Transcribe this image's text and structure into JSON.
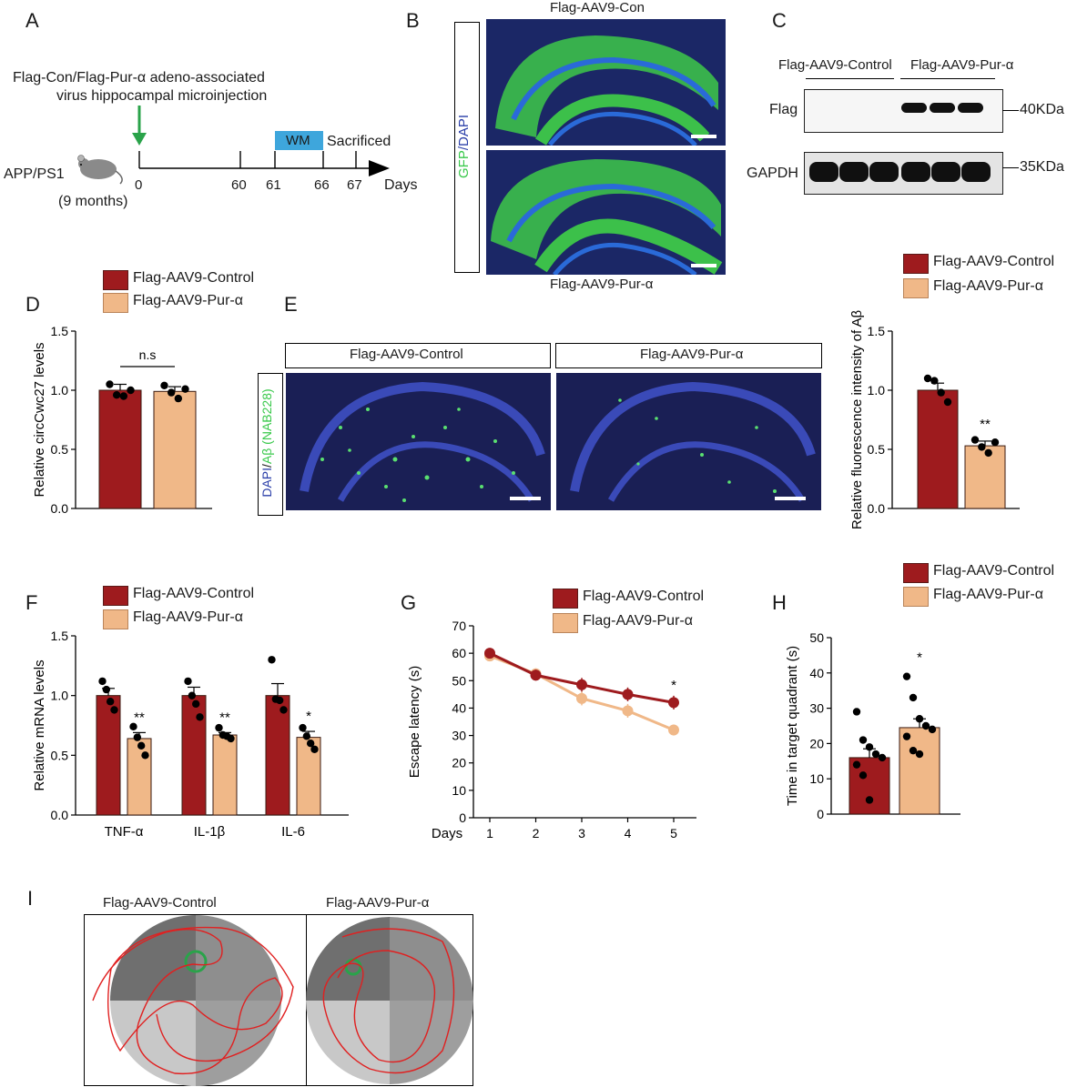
{
  "colors": {
    "control": "#9e1b1e",
    "pur": "#f0b888",
    "wm_box": "#3ea6dc",
    "arrow": "#2aa34a",
    "gfp": "#38c84a",
    "dapi": "#2a3ea8"
  },
  "panel_labels": {
    "a": "A",
    "b": "B",
    "c": "C",
    "d": "D",
    "e": "E",
    "f": "F",
    "g": "G",
    "h": "H",
    "i": "I"
  },
  "legend": {
    "control": "Flag-AAV9-Control",
    "pur": "Flag-AAV9-Pur-α"
  },
  "panel_a": {
    "caption_line1": "Flag-Con/Flag-Pur-α  adeno-associated",
    "caption_line2": "virus hippocampal microinjection",
    "model": "APP/PS1",
    "age": "(9 months)",
    "wm": "WM",
    "sacrificed": "Sacrificed",
    "ticks": [
      "0",
      "60",
      "61",
      "66",
      "67"
    ],
    "axis_label": "Days",
    "mouse_icon": "mouse-icon"
  },
  "panel_b": {
    "top_title": "Flag-AAV9-Con",
    "bottom_title": "Flag-AAV9-Pur-α",
    "side_label_gfp": "GFP",
    "side_label_sep": "/",
    "side_label_dapi": "DAPI"
  },
  "panel_c": {
    "group_control": "Flag-AAV9-Control",
    "group_pur": "Flag-AAV9-Pur-α",
    "row1": "Flag",
    "row2": "GAPDH",
    "mw1": "40KDa",
    "mw2": "35KDa"
  },
  "panel_e": {
    "left_title": "Flag-AAV9-Control",
    "right_title": "Flag-AAV9-Pur-α",
    "side_label_dapi": "DAPI",
    "side_label_sep": "/",
    "side_label_ab": "Aβ (NAB228)"
  },
  "chart_data": [
    {
      "id": "D",
      "type": "bar",
      "categories": [
        "Flag-AAV9-Control",
        "Flag-AAV9-Pur-α"
      ],
      "values": [
        1.0,
        0.99
      ],
      "errors": [
        0.05,
        0.04
      ],
      "points": [
        [
          1.05,
          0.96,
          0.95,
          1.0
        ],
        [
          1.04,
          0.98,
          0.93,
          1.01
        ]
      ],
      "ylabel": "Relative circCwc27 levels",
      "ylim": [
        0,
        1.5
      ],
      "yticks": [
        "0.0",
        "0.5",
        "1.0",
        "1.5"
      ],
      "annotation": "n.s"
    },
    {
      "id": "E",
      "type": "bar",
      "categories": [
        "Flag-AAV9-Control",
        "Flag-AAV9-Pur-α"
      ],
      "values": [
        1.0,
        0.53
      ],
      "errors": [
        0.06,
        0.04
      ],
      "points": [
        [
          1.1,
          1.08,
          0.98,
          0.9
        ],
        [
          0.58,
          0.52,
          0.47,
          0.56
        ]
      ],
      "ylabel": "Relative fluorescence intensity of Aβ",
      "ylim": [
        0,
        1.5
      ],
      "yticks": [
        "0.0",
        "0.5",
        "1.0",
        "1.5"
      ],
      "annotation": "**"
    },
    {
      "id": "F",
      "type": "bar",
      "categories": [
        "TNF-α",
        "IL-1β",
        "IL-6"
      ],
      "series": [
        {
          "name": "Flag-AAV9-Control",
          "values": [
            1.0,
            1.0,
            1.0
          ],
          "errors": [
            0.06,
            0.07,
            0.1
          ],
          "points": [
            [
              1.12,
              1.05,
              0.95,
              0.88
            ],
            [
              1.12,
              1.0,
              0.93,
              0.82
            ],
            [
              1.3,
              0.97,
              0.96,
              0.88
            ]
          ]
        },
        {
          "name": "Flag-AAV9-Pur-α",
          "values": [
            0.64,
            0.67,
            0.65
          ],
          "errors": [
            0.05,
            0.02,
            0.05
          ],
          "points": [
            [
              0.74,
              0.65,
              0.58,
              0.5
            ],
            [
              0.73,
              0.67,
              0.66,
              0.64
            ],
            [
              0.73,
              0.66,
              0.6,
              0.55
            ]
          ]
        }
      ],
      "annotations": [
        "**",
        "**",
        "*"
      ],
      "ylabel": "Relative mRNA levels",
      "ylim": [
        0,
        1.5
      ],
      "yticks": [
        "0.0",
        "0.5",
        "1.0",
        "1.5"
      ]
    },
    {
      "id": "G",
      "type": "line",
      "x": [
        1,
        2,
        3,
        4,
        5
      ],
      "xlabel": "Days",
      "series": [
        {
          "name": "Flag-AAV9-Control",
          "values": [
            60,
            52,
            48.5,
            45,
            42
          ],
          "errors": [
            1,
            2,
            2.5,
            2.5,
            2.5
          ]
        },
        {
          "name": "Flag-AAV9-Pur-α",
          "values": [
            59,
            52.5,
            43.5,
            39,
            32
          ],
          "errors": [
            1,
            2,
            2.5,
            2.5,
            2
          ]
        }
      ],
      "annotation_x": 5,
      "annotation": "*",
      "ylabel": "Escape latency (s)",
      "ylim": [
        0,
        70
      ],
      "yticks": [
        "0",
        "10",
        "20",
        "30",
        "40",
        "50",
        "60",
        "70"
      ],
      "xticks": [
        "1",
        "2",
        "3",
        "4",
        "5"
      ]
    },
    {
      "id": "H",
      "type": "bar",
      "categories": [
        "Flag-AAV9-Control",
        "Flag-AAV9-Pur-α"
      ],
      "values": [
        16,
        24.5
      ],
      "errors": [
        2.5,
        2.5
      ],
      "points": [
        [
          29,
          21,
          19,
          17,
          16,
          14,
          11,
          4
        ],
        [
          39,
          33,
          27,
          25,
          24,
          22,
          18,
          17
        ]
      ],
      "ylabel": "Time in target quadrant (s)",
      "ylim": [
        0,
        50
      ],
      "yticks": [
        "0",
        "10",
        "20",
        "30",
        "40",
        "50"
      ],
      "annotation": "*"
    }
  ],
  "panel_i": {
    "left_title": "Flag-AAV9-Control",
    "right_title": "Flag-AAV9-Pur-α"
  }
}
